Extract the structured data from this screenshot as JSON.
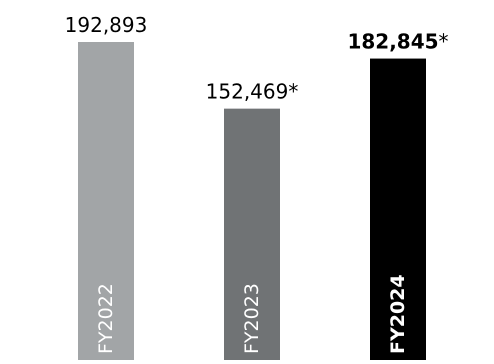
{
  "chart_data": {
    "type": "bar",
    "categories": [
      "FY2022",
      "FY2023",
      "FY2024"
    ],
    "values": [
      192893,
      152469,
      182845
    ],
    "data_labels": [
      {
        "value": "192,893",
        "suffix": ""
      },
      {
        "value": "152,469",
        "suffix": "*"
      },
      {
        "value": "182,845",
        "suffix": "*"
      }
    ],
    "colors": [
      "#a2a5a7",
      "#707375",
      "#000000"
    ],
    "label_colors": [
      "#ffffff",
      "#ffffff",
      "#ffffff"
    ],
    "highlight_index": 2,
    "title": "",
    "xlabel": "",
    "ylabel": "",
    "ylim": [
      0,
      200000
    ],
    "grid": false,
    "legend": "none"
  }
}
